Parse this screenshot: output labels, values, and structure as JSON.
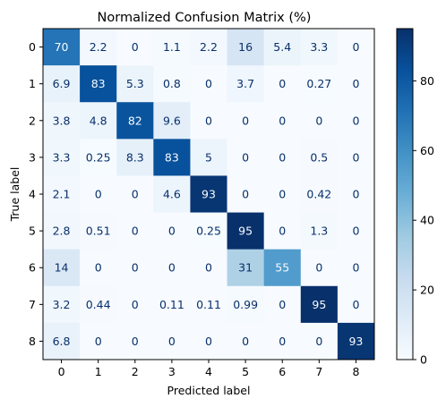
{
  "chart_data": {
    "type": "heatmap",
    "title": "Normalized Confusion Matrix (%)",
    "xlabel": "Predicted label",
    "ylabel": "True label",
    "x_categories": [
      "0",
      "1",
      "2",
      "3",
      "4",
      "5",
      "6",
      "7",
      "8"
    ],
    "y_categories": [
      "0",
      "1",
      "2",
      "3",
      "4",
      "5",
      "6",
      "7",
      "8"
    ],
    "values": [
      [
        70,
        2.2,
        0,
        1.1,
        2.2,
        16,
        5.4,
        3.3,
        0
      ],
      [
        6.9,
        83,
        5.3,
        0.8,
        0,
        3.7,
        0,
        0.27,
        0
      ],
      [
        3.8,
        4.8,
        82,
        9.6,
        0,
        0,
        0,
        0,
        0
      ],
      [
        3.3,
        0.25,
        8.3,
        83,
        5,
        0,
        0,
        0.5,
        0
      ],
      [
        2.1,
        0,
        0,
        4.6,
        93,
        0,
        0,
        0.42,
        0
      ],
      [
        2.8,
        0.51,
        0,
        0,
        0.25,
        95,
        0,
        1.3,
        0
      ],
      [
        14,
        0,
        0,
        0,
        0,
        31,
        55,
        0,
        0
      ],
      [
        3.2,
        0.44,
        0,
        0.11,
        0.11,
        0.99,
        0,
        95,
        0
      ],
      [
        6.8,
        0,
        0,
        0,
        0,
        0,
        0,
        0,
        93
      ]
    ],
    "colormap": "Blues",
    "vmin": 0,
    "vmax": 95,
    "colorbar_ticks": [
      0,
      20,
      40,
      60,
      80
    ],
    "grid": false
  }
}
